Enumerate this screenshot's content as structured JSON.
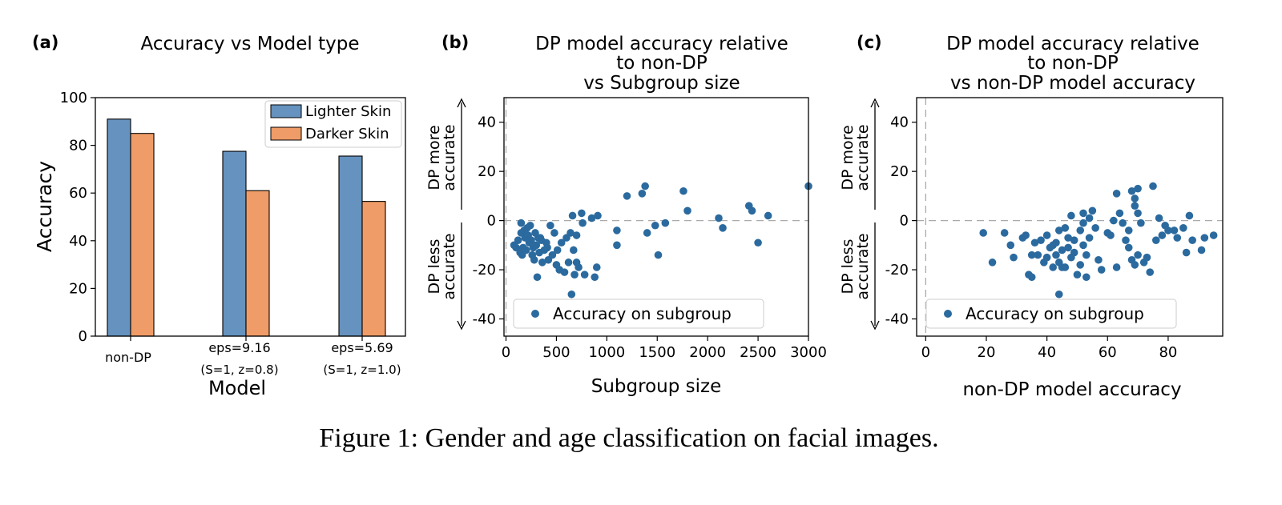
{
  "figure": {
    "caption": "Figure 1: Gender and age classification on facial images."
  },
  "chart_data": [
    {
      "panel_label": "(a)",
      "type": "bar",
      "title": "Accuracy vs Model type",
      "xlabel": "Model",
      "ylabel": "Accuracy",
      "ylim": [
        0,
        100
      ],
      "yticks": [
        0,
        20,
        40,
        60,
        80,
        100
      ],
      "categories": [
        {
          "line1": "non-DP",
          "line2": ""
        },
        {
          "line1": "eps=9.16",
          "line2": "(S=1, z=0.8)"
        },
        {
          "line1": "eps=5.69",
          "line2": "(S=1, z=1.0)"
        }
      ],
      "series": [
        {
          "name": "Lighter Skin",
          "color": "#6592be",
          "values": [
            91,
            77.5,
            75.5
          ]
        },
        {
          "name": "Darker Skin",
          "color": "#ef9c68",
          "values": [
            85,
            61,
            56.5
          ]
        }
      ],
      "legend_position": "top-right"
    },
    {
      "panel_label": "(b)",
      "type": "scatter",
      "title_lines": [
        "DP model accuracy relative",
        "to non-DP",
        "vs Subgroup size"
      ],
      "xlabel": "Subgroup size",
      "side_label_upper": [
        "DP more",
        "accurate"
      ],
      "side_label_lower": [
        "DP less",
        "accurate"
      ],
      "xlim": [
        -20,
        3000
      ],
      "ylim": [
        -47,
        50
      ],
      "xticks": [
        0,
        500,
        1000,
        1500,
        2000,
        2500,
        3000
      ],
      "yticks": [
        -40,
        -20,
        0,
        20,
        40
      ],
      "legend": "Accuracy on subgroup",
      "color": "#2b6a9e",
      "points": [
        [
          80,
          -10
        ],
        [
          100,
          -11
        ],
        [
          120,
          -8
        ],
        [
          140,
          -13
        ],
        [
          150,
          -5
        ],
        [
          150,
          -1
        ],
        [
          160,
          -14
        ],
        [
          170,
          -11
        ],
        [
          180,
          -4
        ],
        [
          190,
          -7
        ],
        [
          200,
          -12
        ],
        [
          210,
          -3
        ],
        [
          220,
          -6
        ],
        [
          230,
          -9
        ],
        [
          240,
          -2
        ],
        [
          250,
          -8
        ],
        [
          260,
          -14
        ],
        [
          270,
          -11
        ],
        [
          280,
          -16
        ],
        [
          290,
          -5
        ],
        [
          300,
          -10
        ],
        [
          310,
          -23
        ],
        [
          320,
          -7
        ],
        [
          330,
          -13
        ],
        [
          340,
          -7
        ],
        [
          350,
          -8
        ],
        [
          360,
          -17
        ],
        [
          380,
          -12
        ],
        [
          400,
          -9
        ],
        [
          410,
          -11
        ],
        [
          420,
          -16
        ],
        [
          440,
          -2
        ],
        [
          460,
          -14
        ],
        [
          480,
          -5
        ],
        [
          500,
          -18
        ],
        [
          510,
          -12
        ],
        [
          530,
          -20
        ],
        [
          550,
          -9
        ],
        [
          580,
          -21
        ],
        [
          600,
          -7
        ],
        [
          620,
          -17
        ],
        [
          640,
          -5
        ],
        [
          650,
          -30
        ],
        [
          660,
          2
        ],
        [
          670,
          -12
        ],
        [
          680,
          -22
        ],
        [
          700,
          -6
        ],
        [
          700,
          -17
        ],
        [
          720,
          -19
        ],
        [
          750,
          3
        ],
        [
          760,
          -1
        ],
        [
          780,
          -22
        ],
        [
          850,
          1
        ],
        [
          880,
          -23
        ],
        [
          900,
          -19
        ],
        [
          910,
          2
        ],
        [
          1100,
          -4
        ],
        [
          1100,
          -10
        ],
        [
          1200,
          10
        ],
        [
          1350,
          11
        ],
        [
          1380,
          14
        ],
        [
          1400,
          -5
        ],
        [
          1480,
          -2
        ],
        [
          1510,
          -14
        ],
        [
          1580,
          -1
        ],
        [
          1760,
          12
        ],
        [
          1800,
          4
        ],
        [
          2110,
          1
        ],
        [
          2150,
          -3
        ],
        [
          2410,
          6
        ],
        [
          2440,
          4
        ],
        [
          2500,
          -9
        ],
        [
          2600,
          2
        ],
        [
          3000,
          14
        ]
      ]
    },
    {
      "panel_label": "(c)",
      "type": "scatter",
      "title_lines": [
        "DP model accuracy relative",
        "to non-DP",
        "vs non-DP model accuracy"
      ],
      "xlabel": "non-DP model accuracy",
      "side_label_upper": [
        "DP more",
        "accurate"
      ],
      "side_label_lower": [
        "DP less",
        "accurate"
      ],
      "xlim": [
        -3,
        98
      ],
      "ylim": [
        -47,
        50
      ],
      "xticks": [
        0,
        20,
        40,
        60,
        80
      ],
      "yticks": [
        -40,
        -20,
        0,
        20,
        40
      ],
      "legend": "Accuracy on subgroup",
      "color": "#2b6a9e",
      "points": [
        [
          19,
          -5
        ],
        [
          22,
          -17
        ],
        [
          26,
          -5
        ],
        [
          28,
          -10
        ],
        [
          29,
          -15
        ],
        [
          32,
          -7
        ],
        [
          33,
          -6
        ],
        [
          34,
          -22
        ],
        [
          35,
          -23
        ],
        [
          35,
          -14
        ],
        [
          36,
          -9
        ],
        [
          37,
          -14
        ],
        [
          38,
          -8
        ],
        [
          39,
          -17
        ],
        [
          40,
          -6
        ],
        [
          40,
          -15
        ],
        [
          41,
          -11
        ],
        [
          42,
          -10
        ],
        [
          42,
          -19
        ],
        [
          43,
          -14
        ],
        [
          43,
          -9
        ],
        [
          44,
          -17
        ],
        [
          44,
          -30
        ],
        [
          44,
          -4
        ],
        [
          45,
          -12
        ],
        [
          45,
          -19
        ],
        [
          46,
          -19
        ],
        [
          46,
          -3
        ],
        [
          47,
          -11
        ],
        [
          47,
          -7
        ],
        [
          48,
          2
        ],
        [
          48,
          -15
        ],
        [
          49,
          -13
        ],
        [
          49,
          -8
        ],
        [
          50,
          -22
        ],
        [
          51,
          -18
        ],
        [
          51,
          -4
        ],
        [
          52,
          -1
        ],
        [
          52,
          -10
        ],
        [
          52,
          3
        ],
        [
          53,
          -23
        ],
        [
          53,
          -14
        ],
        [
          54,
          -7
        ],
        [
          54,
          1
        ],
        [
          55,
          4
        ],
        [
          56,
          -3
        ],
        [
          57,
          -16
        ],
        [
          58,
          -20
        ],
        [
          60,
          -5
        ],
        [
          61,
          -6
        ],
        [
          62,
          0
        ],
        [
          63,
          -19
        ],
        [
          63,
          11
        ],
        [
          64,
          3
        ],
        [
          65,
          -1
        ],
        [
          66,
          -8
        ],
        [
          67,
          -4
        ],
        [
          67,
          -11
        ],
        [
          68,
          -16
        ],
        [
          68,
          12
        ],
        [
          69,
          -18
        ],
        [
          69,
          6
        ],
        [
          69,
          9
        ],
        [
          70,
          13
        ],
        [
          70,
          -14
        ],
        [
          70,
          3
        ],
        [
          71,
          -1
        ],
        [
          72,
          -17
        ],
        [
          73,
          -15
        ],
        [
          74,
          -21
        ],
        [
          75,
          14
        ],
        [
          76,
          -8
        ],
        [
          77,
          1
        ],
        [
          78,
          -6
        ],
        [
          79,
          -2
        ],
        [
          80,
          -4
        ],
        [
          82,
          -4
        ],
        [
          83,
          -7
        ],
        [
          85,
          -3
        ],
        [
          86,
          -13
        ],
        [
          87,
          2
        ],
        [
          88,
          -8
        ],
        [
          91,
          -12
        ],
        [
          92,
          -7
        ],
        [
          95,
          -6
        ]
      ]
    }
  ]
}
